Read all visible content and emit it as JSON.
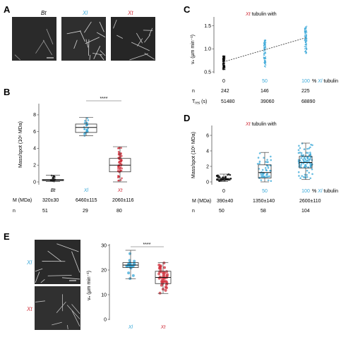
{
  "figure": {
    "panel_labels": [
      "A",
      "B",
      "C",
      "D",
      "E"
    ],
    "colors": {
      "bt": "#000000",
      "xl": "#3aa8d8",
      "xt": "#d0303c",
      "grey": "#808080"
    }
  },
  "panel_a": {
    "labels": [
      "Bt",
      "Xl",
      "Xt"
    ]
  },
  "chart_data": [
    {
      "panel": "B",
      "type": "box",
      "ylabel": "Mass/spot (10⁶ MDa)",
      "ylim": [
        0,
        9
      ],
      "yticks": [
        "0",
        "2",
        "4",
        "6",
        "8"
      ],
      "categories": [
        "Bt",
        "Xl",
        "Xt"
      ],
      "significance": "****",
      "series": [
        {
          "name": "Bt",
          "median": 0.2,
          "q1": 0.15,
          "q3": 0.3,
          "whisker_low": 0.05,
          "whisker_high": 0.8
        },
        {
          "name": "Xl",
          "median": 6.5,
          "q1": 5.9,
          "q3": 6.9,
          "whisker_low": 5.5,
          "whisker_high": 7.7
        },
        {
          "name": "Xt",
          "median": 2.0,
          "q1": 1.2,
          "q3": 2.8,
          "whisker_low": 0.0,
          "whisker_high": 4.2
        }
      ],
      "table": {
        "rows": [
          {
            "label": "M (MDa)",
            "values": [
              "320±30",
              "6460±115",
              "2060±116"
            ]
          },
          {
            "label": "n",
            "values": [
              "51",
              "29",
              "80"
            ]
          }
        ]
      }
    },
    {
      "panel": "C",
      "type": "scatter",
      "title": "Xt tubulin with",
      "ylabel": "vₙ (µm min⁻¹)",
      "ylim": [
        0.5,
        1.6
      ],
      "yticks": [
        "0.5",
        "1.0",
        "1.5"
      ],
      "x": [
        0,
        50,
        100
      ],
      "xticklabels": [
        "0",
        "50",
        "100"
      ],
      "xsuffix": "% Xl tubulin",
      "series": [
        {
          "name": "0",
          "center": 0.7,
          "low": 0.55,
          "high": 0.85
        },
        {
          "name": "50",
          "center": 0.95,
          "low": 0.6,
          "high": 1.2
        },
        {
          "name": "100",
          "center": 1.2,
          "low": 0.9,
          "high": 1.5
        }
      ],
      "fit_line": {
        "x": [
          0,
          100
        ],
        "y": [
          0.72,
          1.24
        ]
      },
      "table": {
        "rows": [
          {
            "label": "n",
            "values": [
              "242",
              "146",
              "225"
            ]
          },
          {
            "label": "T_res (s)",
            "values": [
              "51480",
              "39060",
              "68890"
            ]
          }
        ]
      }
    },
    {
      "panel": "D",
      "type": "box",
      "title": "Xt tubulin with",
      "ylabel": "Mass/spot (10⁶ MDa)",
      "ylim": [
        0,
        7
      ],
      "yticks": [
        "0",
        "2",
        "4",
        "6"
      ],
      "categories": [
        "0",
        "50",
        "100"
      ],
      "xsuffix": "% Xl tubulin",
      "series": [
        {
          "name": "0",
          "median": 0.3,
          "q1": 0.2,
          "q3": 0.45,
          "whisker_low": 0.05,
          "whisker_high": 1.0
        },
        {
          "name": "50",
          "median": 1.2,
          "q1": 0.5,
          "q3": 2.2,
          "whisker_low": 0.0,
          "whisker_high": 3.8
        },
        {
          "name": "100",
          "median": 2.5,
          "q1": 1.8,
          "q3": 3.3,
          "whisker_low": 0.3,
          "whisker_high": 5.0
        }
      ],
      "table": {
        "rows": [
          {
            "label": "M (MDa)",
            "values": [
              "390±40",
              "1350±140",
              "2600±110"
            ]
          },
          {
            "label": "n",
            "values": [
              "50",
              "58",
              "104"
            ]
          }
        ]
      }
    },
    {
      "panel": "E",
      "type": "box",
      "ylabel": "vₙ (µm min⁻¹)",
      "ylim": [
        0,
        30
      ],
      "yticks": [
        "0",
        "10",
        "20",
        "30"
      ],
      "categories": [
        "Xl",
        "Xt"
      ],
      "significance": "****",
      "series": [
        {
          "name": "Xl",
          "median": 22,
          "q1": 21,
          "q3": 23,
          "whisker_low": 16.5,
          "whisker_high": 28
        },
        {
          "name": "Xt",
          "median": 17,
          "q1": 14.5,
          "q3": 19.5,
          "whisker_low": 10.5,
          "whisker_high": 23
        }
      ]
    }
  ],
  "panel_e_images": {
    "labels": [
      "Xl",
      "Xt"
    ]
  }
}
